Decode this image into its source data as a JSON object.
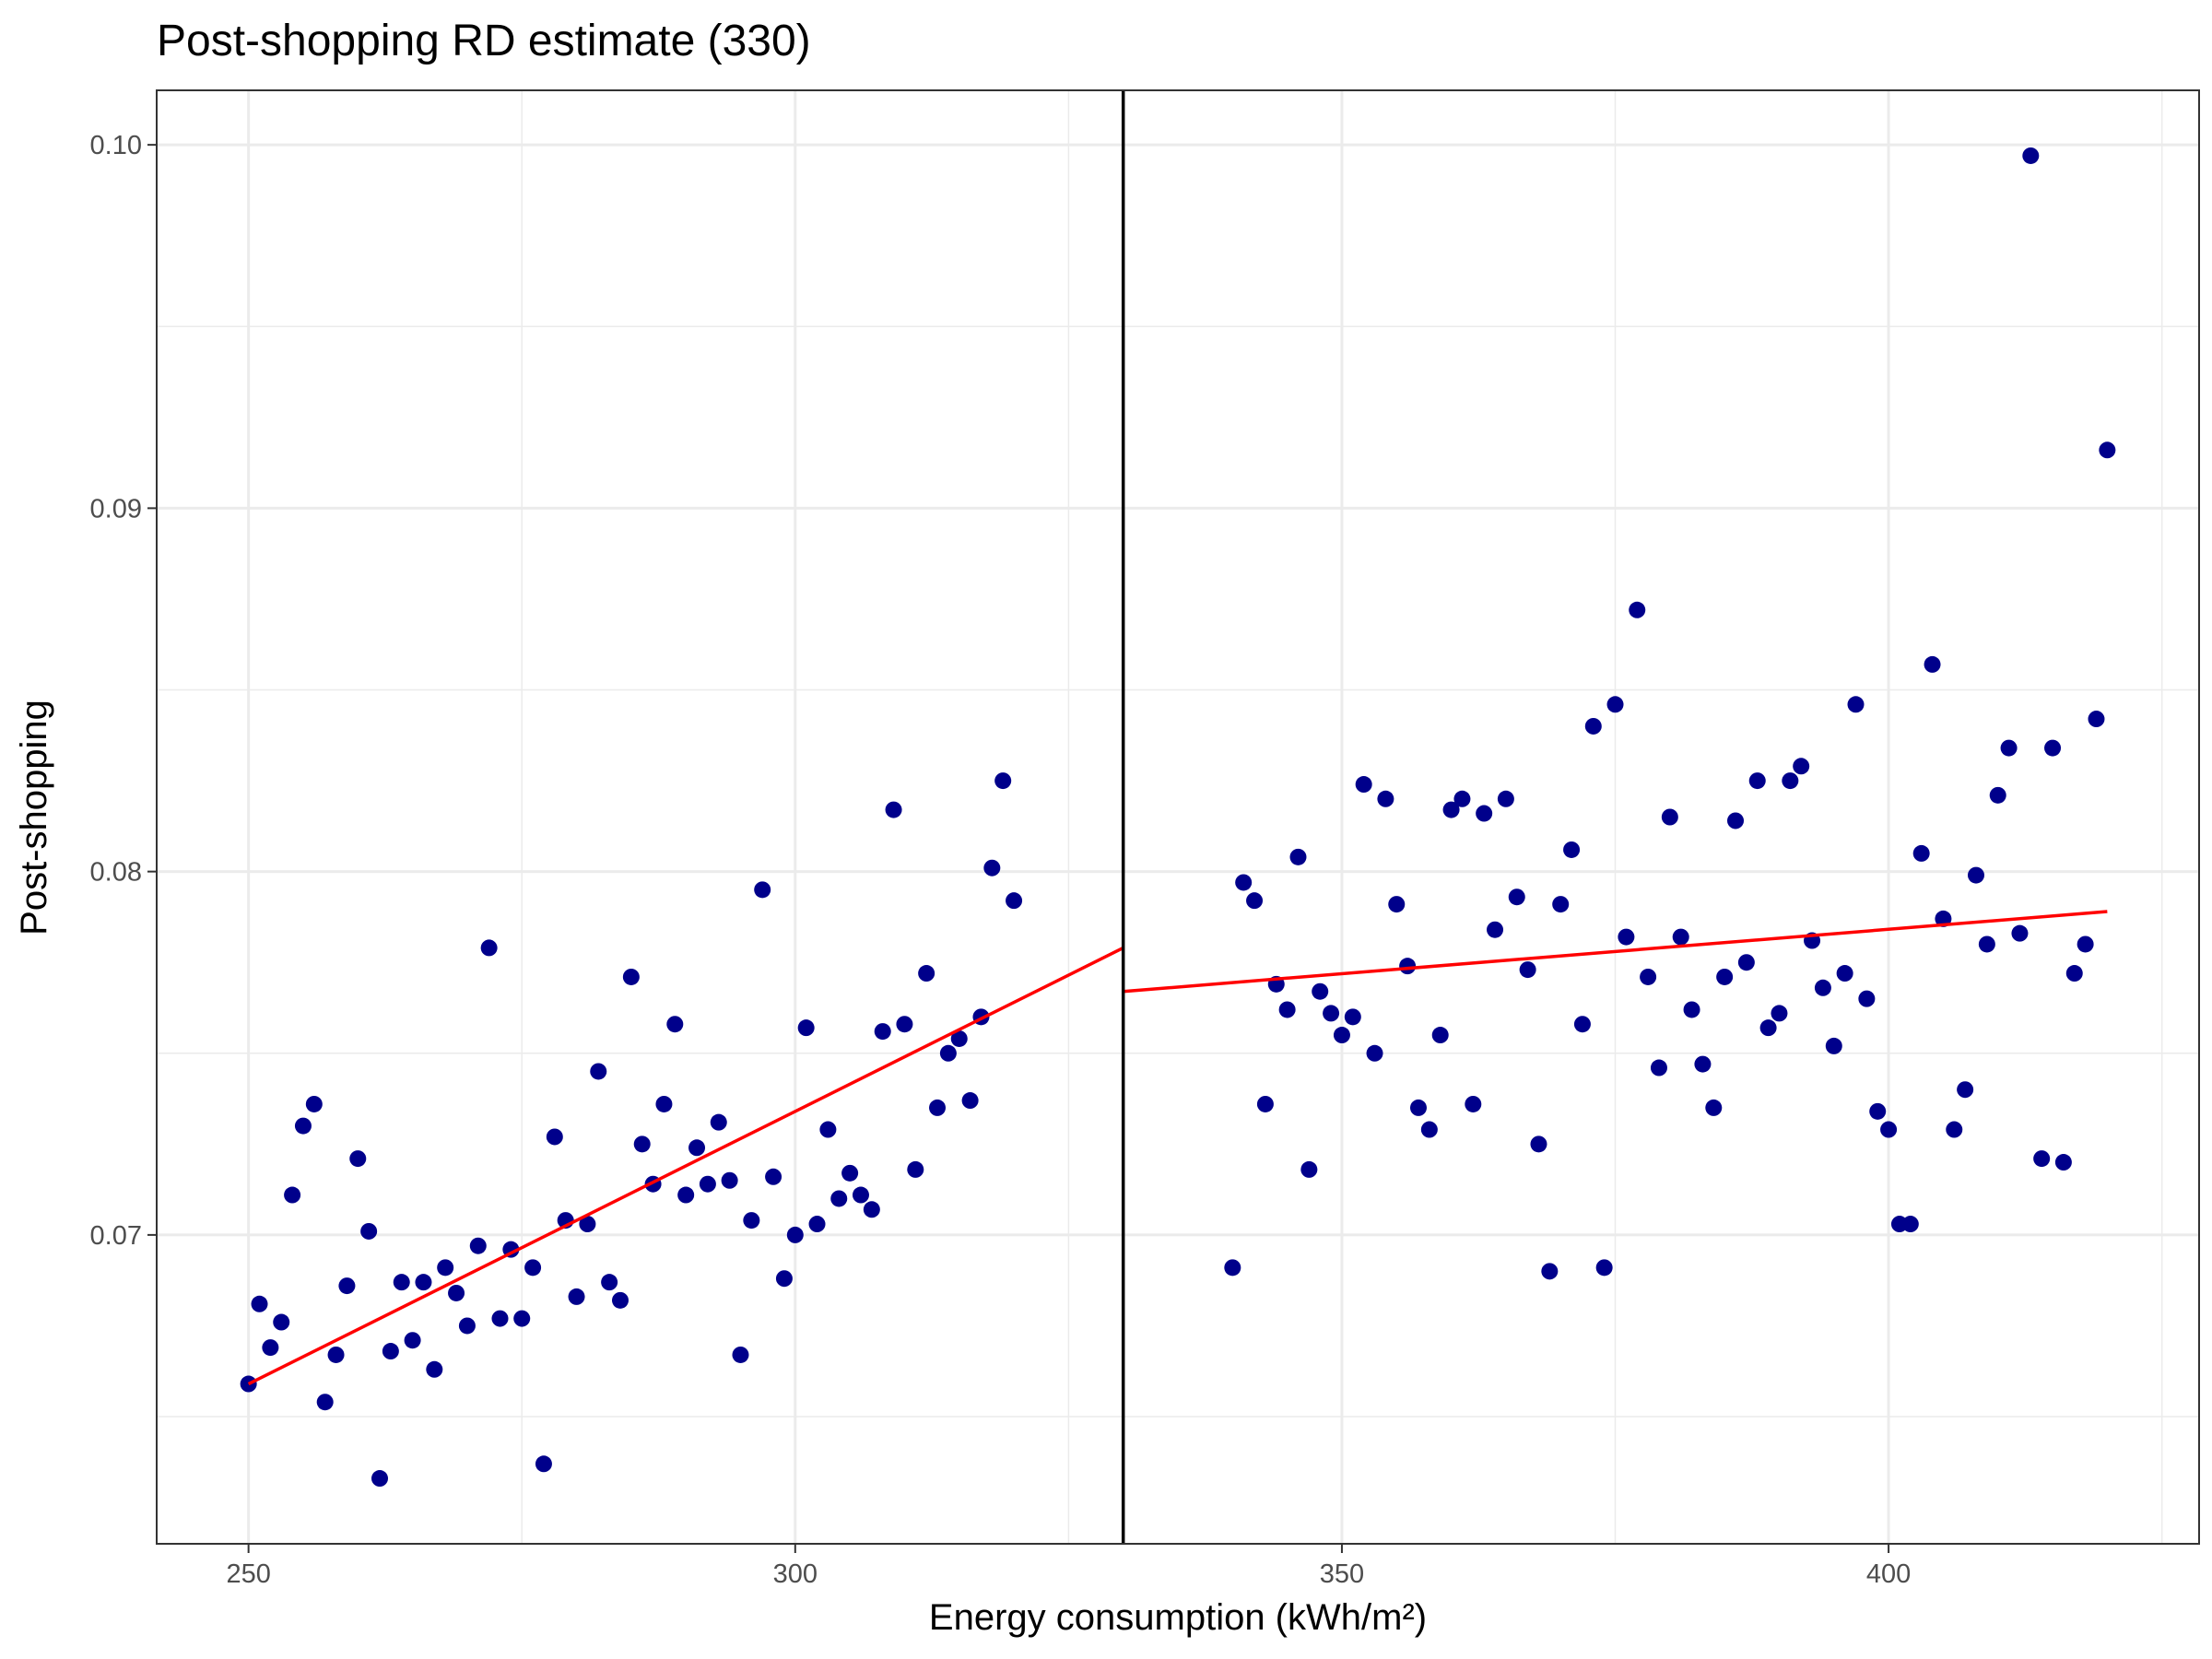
{
  "chart_data": {
    "type": "scatter",
    "title": "Post-shopping RD estimate (330)",
    "xlabel": "Energy consumption (kWh/m²)",
    "ylabel": "Post-shopping",
    "xlim": [
      241.6,
      428.4
    ],
    "ylim": [
      0.0615,
      0.1015
    ],
    "x_ticks": [
      250,
      300,
      350,
      400
    ],
    "x_tick_labels": [
      "250",
      "300",
      "350",
      "400"
    ],
    "y_ticks": [
      0.07,
      0.08,
      0.09,
      0.1
    ],
    "y_tick_labels": [
      "0.07",
      "0.08",
      "0.09",
      "0.10"
    ],
    "grid": true,
    "cutoff": 330,
    "colors": {
      "points": "#00008B",
      "fit": "#FF0000",
      "cutoff": "#000000"
    },
    "fit_lines": [
      {
        "x": [
          250,
          330
        ],
        "y": [
          0.0659,
          0.0779
        ]
      },
      {
        "x": [
          330,
          420
        ],
        "y": [
          0.0767,
          0.0789
        ]
      }
    ],
    "series": [
      {
        "values": [
          [
            250,
            0.0659
          ],
          [
            251,
            0.0681
          ],
          [
            252,
            0.0669
          ],
          [
            253,
            0.0676
          ],
          [
            254,
            0.0711
          ],
          [
            255,
            0.073
          ],
          [
            256,
            0.0736
          ],
          [
            257,
            0.0654
          ],
          [
            258,
            0.0667
          ],
          [
            259,
            0.0686
          ],
          [
            260,
            0.0721
          ],
          [
            261,
            0.0701
          ],
          [
            262,
            0.0633
          ],
          [
            263,
            0.0668
          ],
          [
            264,
            0.0687
          ],
          [
            265,
            0.0671
          ],
          [
            266,
            0.0687
          ],
          [
            267,
            0.0663
          ],
          [
            268,
            0.0691
          ],
          [
            269,
            0.0684
          ],
          [
            270,
            0.0675
          ],
          [
            271,
            0.0697
          ],
          [
            272,
            0.0779
          ],
          [
            273,
            0.0677
          ],
          [
            274,
            0.0696
          ],
          [
            275,
            0.0677
          ],
          [
            276,
            0.0691
          ],
          [
            277,
            0.0637
          ],
          [
            278,
            0.0727
          ],
          [
            279,
            0.0704
          ],
          [
            280,
            0.0683
          ],
          [
            281,
            0.0703
          ],
          [
            282,
            0.0745
          ],
          [
            283,
            0.0687
          ],
          [
            284,
            0.0682
          ],
          [
            285,
            0.0771
          ],
          [
            286,
            0.0725
          ],
          [
            287,
            0.0714
          ],
          [
            288,
            0.0736
          ],
          [
            289,
            0.0758
          ],
          [
            290,
            0.0711
          ],
          [
            291,
            0.0724
          ],
          [
            292,
            0.0714
          ],
          [
            293,
            0.0731
          ],
          [
            294,
            0.0715
          ],
          [
            295,
            0.0667
          ],
          [
            296,
            0.0704
          ],
          [
            297,
            0.0795
          ],
          [
            298,
            0.0716
          ],
          [
            299,
            0.0688
          ],
          [
            300,
            0.07
          ],
          [
            301,
            0.0757
          ],
          [
            302,
            0.0703
          ],
          [
            303,
            0.0729
          ],
          [
            304,
            0.071
          ],
          [
            305,
            0.0717
          ],
          [
            306,
            0.0711
          ],
          [
            307,
            0.0707
          ],
          [
            308,
            0.0756
          ],
          [
            309,
            0.0817
          ],
          [
            310,
            0.0758
          ],
          [
            311,
            0.0718
          ],
          [
            312,
            0.0772
          ],
          [
            313,
            0.0735
          ],
          [
            314,
            0.075
          ],
          [
            315,
            0.0754
          ],
          [
            316,
            0.0737
          ],
          [
            317,
            0.076
          ],
          [
            318,
            0.0801
          ],
          [
            319,
            0.0825
          ],
          [
            320,
            0.0792
          ],
          [
            340,
            0.0691
          ],
          [
            341,
            0.0797
          ],
          [
            342,
            0.0792
          ],
          [
            343,
            0.0736
          ],
          [
            344,
            0.0769
          ],
          [
            345,
            0.0762
          ],
          [
            346,
            0.0804
          ],
          [
            347,
            0.0718
          ],
          [
            348,
            0.0767
          ],
          [
            349,
            0.0761
          ],
          [
            350,
            0.0755
          ],
          [
            351,
            0.076
          ],
          [
            352,
            0.0824
          ],
          [
            353,
            0.075
          ],
          [
            354,
            0.082
          ],
          [
            355,
            0.0791
          ],
          [
            356,
            0.0774
          ],
          [
            357,
            0.0735
          ],
          [
            358,
            0.0729
          ],
          [
            359,
            0.0755
          ],
          [
            360,
            0.0817
          ],
          [
            361,
            0.082
          ],
          [
            362,
            0.0736
          ],
          [
            363,
            0.0816
          ],
          [
            364,
            0.0784
          ],
          [
            365,
            0.082
          ],
          [
            366,
            0.0793
          ],
          [
            367,
            0.0773
          ],
          [
            368,
            0.0725
          ],
          [
            369,
            0.069
          ],
          [
            370,
            0.0791
          ],
          [
            371,
            0.0806
          ],
          [
            372,
            0.0758
          ],
          [
            373,
            0.084
          ],
          [
            374,
            0.0691
          ],
          [
            375,
            0.0846
          ],
          [
            376,
            0.0782
          ],
          [
            377,
            0.0872
          ],
          [
            378,
            0.0771
          ],
          [
            379,
            0.0746
          ],
          [
            380,
            0.0815
          ],
          [
            381,
            0.0782
          ],
          [
            382,
            0.0762
          ],
          [
            383,
            0.0747
          ],
          [
            384,
            0.0735
          ],
          [
            385,
            0.0771
          ],
          [
            386,
            0.0814
          ],
          [
            387,
            0.0775
          ],
          [
            388,
            0.0825
          ],
          [
            389,
            0.0757
          ],
          [
            390,
            0.0761
          ],
          [
            391,
            0.0825
          ],
          [
            392,
            0.0829
          ],
          [
            393,
            0.0781
          ],
          [
            394,
            0.0768
          ],
          [
            395,
            0.0752
          ],
          [
            396,
            0.0772
          ],
          [
            397,
            0.0846
          ],
          [
            398,
            0.0765
          ],
          [
            399,
            0.0734
          ],
          [
            400,
            0.0729
          ],
          [
            401,
            0.0703
          ],
          [
            402,
            0.0703
          ],
          [
            403,
            0.0805
          ],
          [
            404,
            0.0857
          ],
          [
            405,
            0.0787
          ],
          [
            406,
            0.0729
          ],
          [
            407,
            0.074
          ],
          [
            408,
            0.0799
          ],
          [
            409,
            0.078
          ],
          [
            410,
            0.0821
          ],
          [
            411,
            0.0834
          ],
          [
            412,
            0.0783
          ],
          [
            413,
            0.0997
          ],
          [
            414,
            0.0721
          ],
          [
            415,
            0.0834
          ],
          [
            416,
            0.072
          ],
          [
            417,
            0.0772
          ],
          [
            418,
            0.078
          ],
          [
            419,
            0.0842
          ],
          [
            420,
            0.0916
          ]
        ]
      }
    ]
  }
}
